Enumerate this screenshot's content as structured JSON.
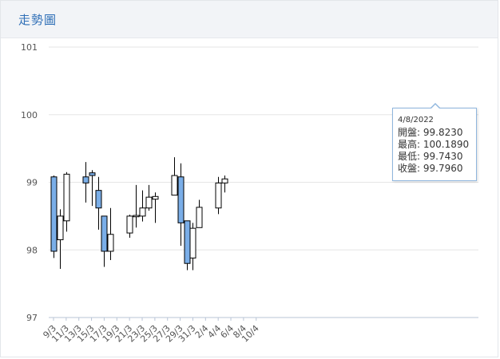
{
  "header": {
    "title": "走勢圖"
  },
  "tooltip": {
    "date": "4/8/2022",
    "rows": [
      {
        "label": "開盤",
        "value": "99.8230"
      },
      {
        "label": "最高",
        "value": "100.1890"
      },
      {
        "label": "最低",
        "value": "99.7430"
      },
      {
        "label": "收盤",
        "value": "99.7960"
      }
    ]
  },
  "colors": {
    "bearish": "#7aaee8",
    "bullish": "#ffffff",
    "wick": "#000000",
    "accent": "#2f6fb7"
  },
  "chart_data": {
    "type": "candlestick",
    "title": "",
    "xlabel": "",
    "ylabel": "",
    "ylim": [
      97,
      101
    ],
    "y_ticks": [
      97,
      98,
      99,
      100,
      101
    ],
    "x_tick_labels": [
      "9/3",
      "11/3",
      "13/3",
      "15/3",
      "17/3",
      "19/3",
      "21/3",
      "23/3",
      "25/3",
      "27/3",
      "29/3",
      "31/3",
      "2/4",
      "4/4",
      "6/4",
      "8/4",
      "10/4"
    ],
    "grid": true,
    "candles": [
      {
        "date": "9/3",
        "open": 99.08,
        "high": 99.1,
        "low": 97.88,
        "close": 97.98
      },
      {
        "date": "10/3",
        "open": 98.15,
        "high": 98.6,
        "low": 97.72,
        "close": 98.5
      },
      {
        "date": "11/3",
        "open": 98.43,
        "high": 99.15,
        "low": 98.27,
        "close": 99.12
      },
      {
        "date": "14/3",
        "open": 99.08,
        "high": 99.3,
        "low": 98.7,
        "close": 98.99
      },
      {
        "date": "15/3",
        "open": 99.14,
        "high": 99.18,
        "low": 98.65,
        "close": 99.1
      },
      {
        "date": "16/3",
        "open": 98.88,
        "high": 99.08,
        "low": 98.3,
        "close": 98.62
      },
      {
        "date": "17/3",
        "open": 98.5,
        "high": 98.5,
        "low": 97.75,
        "close": 97.98
      },
      {
        "date": "18/3",
        "open": 97.98,
        "high": 98.62,
        "low": 97.85,
        "close": 98.23
      },
      {
        "date": "21/3",
        "open": 98.25,
        "high": 98.52,
        "low": 98.18,
        "close": 98.5
      },
      {
        "date": "22/3",
        "open": 98.49,
        "high": 98.96,
        "low": 98.33,
        "close": 98.51
      },
      {
        "date": "23/3",
        "open": 98.5,
        "high": 98.88,
        "low": 98.42,
        "close": 98.62
      },
      {
        "date": "24/3",
        "open": 98.62,
        "high": 98.96,
        "low": 98.58,
        "close": 98.78
      },
      {
        "date": "25/3",
        "open": 98.75,
        "high": 98.85,
        "low": 98.4,
        "close": 98.79
      },
      {
        "date": "28/3",
        "open": 98.81,
        "high": 99.37,
        "low": 98.81,
        "close": 99.1
      },
      {
        "date": "29/3",
        "open": 99.08,
        "high": 99.28,
        "low": 98.06,
        "close": 98.4
      },
      {
        "date": "30/3",
        "open": 98.43,
        "high": 98.43,
        "low": 97.7,
        "close": 97.8
      },
      {
        "date": "31/3",
        "open": 97.88,
        "high": 98.4,
        "low": 97.7,
        "close": 98.32
      },
      {
        "date": "1/4",
        "open": 98.33,
        "high": 98.74,
        "low": 98.33,
        "close": 98.63
      },
      {
        "date": "4/4",
        "open": 98.62,
        "high": 99.08,
        "low": 98.53,
        "close": 98.99
      },
      {
        "date": "5/4",
        "open": 98.99,
        "high": 99.1,
        "low": 98.85,
        "close": 99.05
      }
    ]
  }
}
